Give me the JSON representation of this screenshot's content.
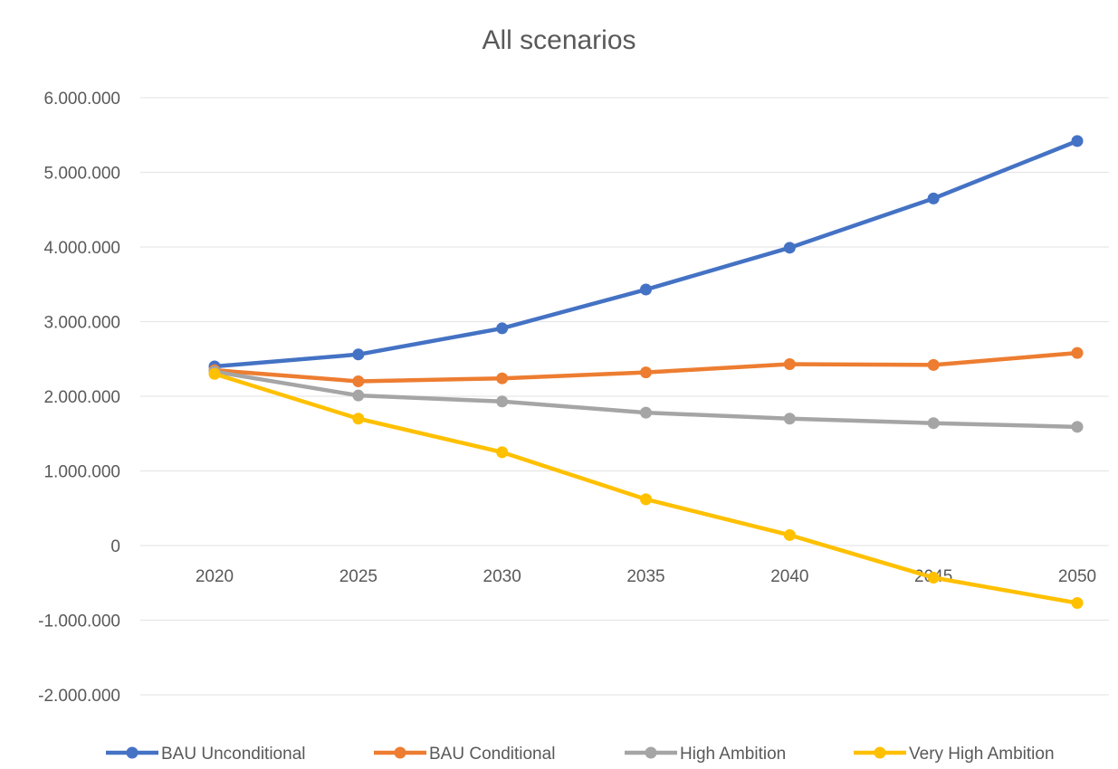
{
  "chart_data": {
    "type": "line",
    "title": "All scenarios",
    "xlabel": "",
    "ylabel": "",
    "categories": [
      "2020",
      "2025",
      "2030",
      "2035",
      "2040",
      "2045",
      "2050"
    ],
    "ylim": [
      -2000000,
      6000000
    ],
    "yticks": [
      6000000,
      5000000,
      4000000,
      3000000,
      2000000,
      1000000,
      0,
      -1000000,
      -2000000
    ],
    "ytick_labels": [
      "6.000.000",
      "5.000.000",
      "4.000.000",
      "3.000.000",
      "2.000.000",
      "1.000.000",
      "0",
      "-1.000.000",
      "-2.000.000"
    ],
    "grid": true,
    "legend_position": "bottom",
    "series": [
      {
        "name": "BAU Unconditional",
        "color": "#4472c4",
        "values": [
          2400000,
          2560000,
          2910000,
          3430000,
          3990000,
          4650000,
          5420000
        ]
      },
      {
        "name": "BAU Conditional",
        "color": "#ed7d31",
        "values": [
          2350000,
          2200000,
          2240000,
          2320000,
          2430000,
          2420000,
          2580000
        ]
      },
      {
        "name": "High Ambition",
        "color": "#a5a5a5",
        "values": [
          2330000,
          2010000,
          1930000,
          1780000,
          1700000,
          1640000,
          1590000
        ]
      },
      {
        "name": "Very High Ambition",
        "color": "#ffc000",
        "values": [
          2300000,
          1700000,
          1250000,
          620000,
          140000,
          -430000,
          -770000
        ]
      }
    ]
  }
}
